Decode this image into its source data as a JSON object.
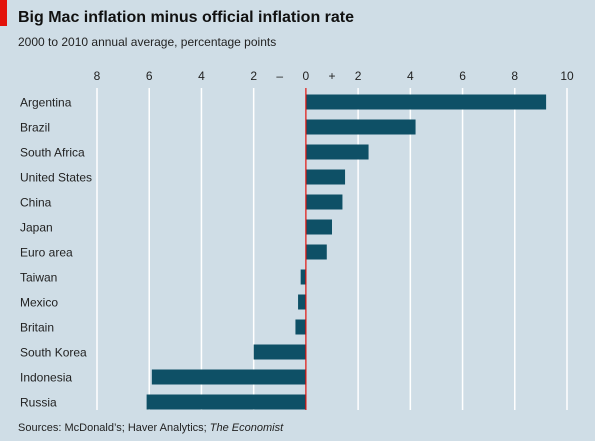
{
  "header": {
    "title": "Big Mac inflation minus official inflation rate",
    "subtitle": "2000 to 2010 annual average, percentage points"
  },
  "footer": {
    "source_prefix": "Sources: McDonald’s; Haver Analytics; ",
    "source_publication": "The Economist"
  },
  "colors": {
    "background": "#cfdde6",
    "bar": "#0e5066",
    "zero_line": "#e3120b",
    "gridline": "#ffffff",
    "accent_tab": "#e3120b"
  },
  "chart_data": {
    "type": "bar",
    "orientation": "horizontal",
    "categories": [
      "Argentina",
      "Brazil",
      "South Africa",
      "United States",
      "China",
      "Japan",
      "Euro area",
      "Taiwan",
      "Mexico",
      "Britain",
      "South Korea",
      "Indonesia",
      "Russia"
    ],
    "values": [
      9.2,
      4.2,
      2.4,
      1.5,
      1.4,
      1.0,
      0.8,
      -0.2,
      -0.3,
      -0.4,
      -2.0,
      -5.9,
      -6.1
    ],
    "xlim": [
      -8,
      10
    ],
    "xticks": [
      -8,
      -6,
      -4,
      -2,
      0,
      2,
      4,
      6,
      8,
      10
    ],
    "tick_labels": [
      "8",
      "6",
      "4",
      "2",
      "0",
      "2",
      "4",
      "6",
      "8",
      "10"
    ],
    "sign_labels": {
      "negative": "–",
      "positive": "+"
    },
    "grid": true
  }
}
